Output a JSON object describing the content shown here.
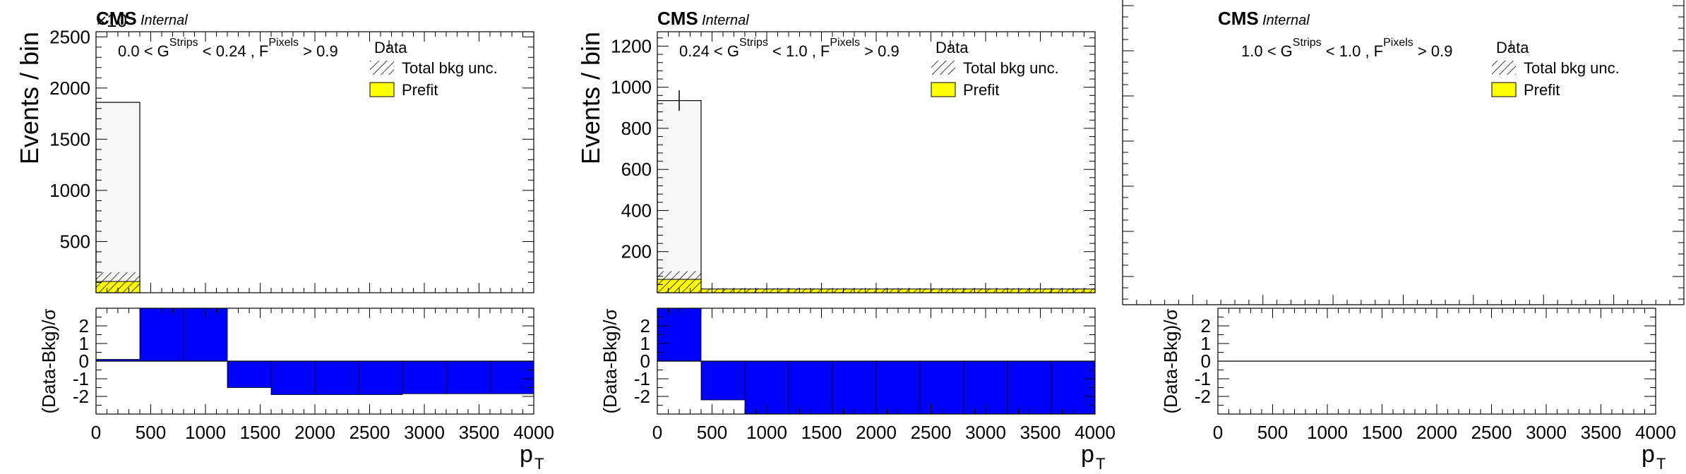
{
  "chart_data": [
    {
      "type": "bar",
      "experiment": "CMS",
      "status": "Internal",
      "exponent_label": "×10",
      "region": {
        "pre": "0.0 < G",
        "sup1": "Strips",
        "mid": " < 0.24 , F",
        "sup2": "Pixels",
        "post": " > 0.9"
      },
      "legend": {
        "data": "Data",
        "unc": "Total bkg unc.",
        "prefit": "Prefit"
      },
      "xlabel": "p",
      "xlabel_sub": "T",
      "ylabel": "Events / bin",
      "ratio_ylabel": "(Data-Bkg)/σ",
      "xlim": [
        0,
        4000
      ],
      "ylim": [
        0,
        2550
      ],
      "show_yaxis_labels": true,
      "y_ticks": [
        500,
        1000,
        1500,
        2000,
        2500
      ],
      "x_ticks": [
        0,
        500,
        1000,
        1500,
        2000,
        2500,
        3000,
        3500,
        4000
      ],
      "ratio_ylim": [
        -3,
        3
      ],
      "ratio_ticks": [
        -2,
        -1,
        0,
        1,
        2
      ],
      "bin_edges": [
        0,
        400,
        800,
        1200,
        1600,
        2000,
        2400,
        2800,
        3200,
        3600,
        4000
      ],
      "data": [
        1860,
        0,
        0,
        0,
        0,
        0,
        0,
        0,
        0,
        0
      ],
      "prefit": [
        110,
        0,
        0,
        0,
        0,
        0,
        0,
        0,
        0,
        0
      ],
      "unc_high": [
        200,
        0,
        0,
        0,
        0,
        0,
        0,
        0,
        0,
        0
      ],
      "pull": [
        0.1,
        3.5,
        3.5,
        -1.5,
        -1.9,
        -1.9,
        -1.9,
        -1.85,
        -1.85,
        -1.85
      ]
    },
    {
      "type": "bar",
      "experiment": "CMS",
      "status": "Internal",
      "exponent_label": "",
      "region": {
        "pre": "0.24 < G",
        "sup1": "Strips",
        "mid": " < 1.0 , F",
        "sup2": "Pixels",
        "post": " > 0.9"
      },
      "legend": {
        "data": "Data",
        "unc": "Total bkg unc.",
        "prefit": "Prefit"
      },
      "xlabel": "p",
      "xlabel_sub": "T",
      "ylabel": "Events / bin",
      "ratio_ylabel": "(Data-Bkg)/σ",
      "xlim": [
        0,
        4000
      ],
      "ylim": [
        0,
        1270
      ],
      "show_yaxis_labels": true,
      "y_ticks": [
        200,
        400,
        600,
        800,
        1000,
        1200
      ],
      "x_ticks": [
        0,
        500,
        1000,
        1500,
        2000,
        2500,
        3000,
        3500,
        4000
      ],
      "ratio_ylim": [
        -3,
        3
      ],
      "ratio_ticks": [
        -2,
        -1,
        0,
        1,
        2
      ],
      "bin_edges": [
        0,
        400,
        800,
        1200,
        1600,
        2000,
        2400,
        2800,
        3200,
        3600,
        4000
      ],
      "data": [
        935,
        15,
        15,
        15,
        15,
        15,
        15,
        15,
        15,
        15
      ],
      "data_err": [
        50,
        4,
        4,
        4,
        4,
        4,
        4,
        4,
        4,
        4
      ],
      "prefit": [
        65,
        18,
        18,
        18,
        18,
        18,
        18,
        18,
        18,
        18
      ],
      "unc_high": [
        105,
        22,
        22,
        22,
        22,
        22,
        22,
        22,
        22,
        22
      ],
      "pull": [
        3.0,
        -2.2,
        -3.0,
        -3.0,
        -3.0,
        -3.0,
        -3.0,
        -3.0,
        -3.0,
        -3.0
      ]
    },
    {
      "type": "bar",
      "experiment": "CMS",
      "status": "Internal",
      "exponent_label": "",
      "region": {
        "pre": "1.0 < G",
        "sup1": "Strips",
        "mid": " < 1.0 , F",
        "sup2": "Pixels",
        "post": " > 0.9"
      },
      "legend": {
        "data": "Data",
        "unc": "Total bkg unc.",
        "prefit": "Prefit"
      },
      "xlabel": "p",
      "xlabel_sub": "T",
      "ylabel": "",
      "ratio_ylabel": "(Data-Bkg)/σ",
      "xlim": [
        0,
        4000
      ],
      "ylim": [
        0,
        1
      ],
      "show_yaxis_labels": false,
      "y_ticks": [],
      "x_ticks": [
        0,
        500,
        1000,
        1500,
        2000,
        2500,
        3000,
        3500,
        4000
      ],
      "ratio_ylim": [
        -3,
        3
      ],
      "ratio_ticks": [
        -2,
        -1,
        0,
        1,
        2
      ],
      "bin_edges": [
        0,
        400,
        800,
        1200,
        1600,
        2000,
        2400,
        2800,
        3200,
        3600,
        4000
      ],
      "data": [
        0,
        0,
        0,
        0,
        0,
        0,
        0,
        0,
        0,
        0
      ],
      "prefit": [
        0,
        0,
        0,
        0,
        0,
        0,
        0,
        0,
        0,
        0
      ],
      "unc_high": [
        0,
        0,
        0,
        0,
        0,
        0,
        0,
        0,
        0,
        0
      ],
      "pull": [
        0,
        0,
        0,
        0,
        0,
        0,
        0,
        0,
        0,
        0
      ]
    }
  ],
  "colors": {
    "prefit": "#ffff00",
    "pull": "#0000ff",
    "data_hist_fill": "#f7f7f7",
    "axis": "#000000"
  }
}
